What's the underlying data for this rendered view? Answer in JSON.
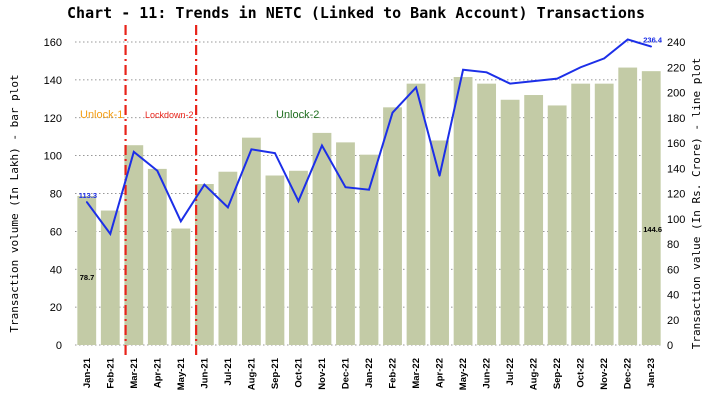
{
  "chart_data": {
    "type": "bar",
    "title": "Chart - 11: Trends in NETC (Linked to Bank Account) Transactions",
    "ylabel_left": "Transaction volume (In Lakh) - bar plot",
    "ylabel_right": "Transaction value (In Rs. Crore) - line plot",
    "ylim_left": [
      0,
      160
    ],
    "ylim_right": [
      0,
      240
    ],
    "yticks_left": [
      "0",
      "20",
      "40",
      "60",
      "80",
      "100",
      "120",
      "140",
      "160"
    ],
    "yticks_right": [
      "0",
      "20",
      "40",
      "60",
      "80",
      "100",
      "120",
      "140",
      "160",
      "180",
      "200",
      "220",
      "240"
    ],
    "grid": true,
    "categories": [
      "Jan-21",
      "Feb-21",
      "Mar-21",
      "Apr-21",
      "May-21",
      "Jun-21",
      "Jul-21",
      "Aug-21",
      "Sep-21",
      "Oct-21",
      "Nov-21",
      "Dec-21",
      "Jan-22",
      "Feb-22",
      "Mar-22",
      "Apr-22",
      "May-22",
      "Jun-22",
      "Jul-22",
      "Aug-22",
      "Sep-22",
      "Oct-22",
      "Nov-22",
      "Dec-22",
      "Jan-23"
    ],
    "series": [
      {
        "type": "bar",
        "axis": "left",
        "color": "#c3cba6",
        "values": [
          78.7,
          71,
          105.5,
          93,
          61.5,
          85,
          91.5,
          109.5,
          89.5,
          92,
          112,
          107,
          100.5,
          125.5,
          138,
          108,
          141.5,
          138,
          129.5,
          132,
          126.5,
          138,
          138,
          146.5,
          144.6
        ]
      },
      {
        "type": "line",
        "axis": "right",
        "color": "#1c2fe8",
        "values": [
          113.3,
          88,
          153,
          138,
          98,
          127,
          109,
          155,
          152,
          114,
          158,
          125,
          123,
          184,
          204,
          134,
          218,
          216,
          207,
          209,
          211,
          220,
          227,
          242,
          236.4
        ]
      }
    ],
    "data_labels": {
      "bar_first": "78.7",
      "bar_last": "144.6",
      "line_first": "113.3",
      "line_last": "236.4"
    },
    "annotations": [
      {
        "text": "Unlock-1",
        "color": "#f39c12"
      },
      {
        "text": "Lockdown-2",
        "color": "#e8231a"
      },
      {
        "text": "Unlock-2",
        "color": "#1f6e1f"
      }
    ],
    "vlines": {
      "color": "#e8231a",
      "after_categories": [
        "Feb-21",
        "May-21"
      ]
    }
  }
}
